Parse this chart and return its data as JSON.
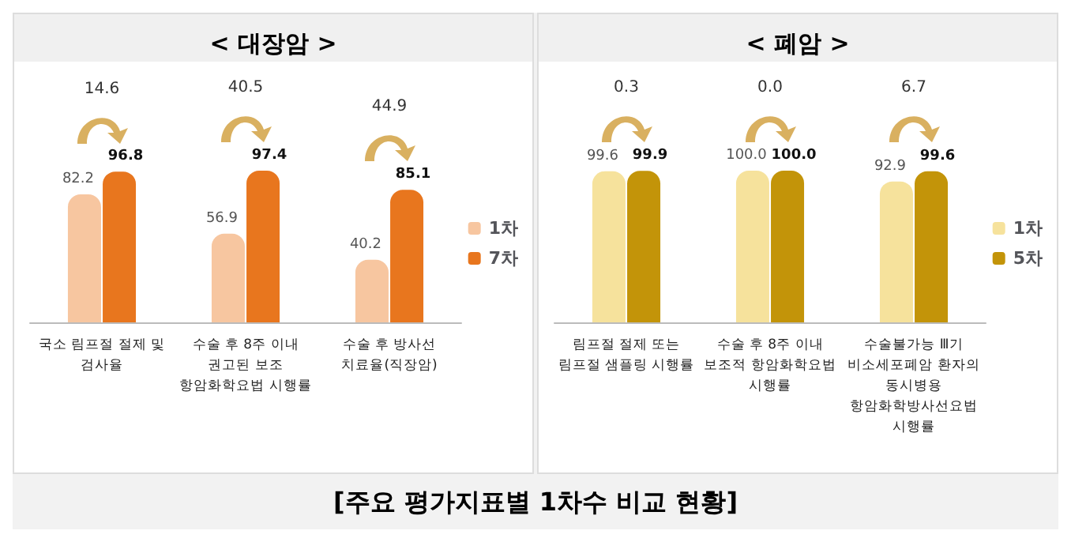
{
  "chart_data": [
    {
      "type": "bar",
      "title": "< 대장암 >",
      "categories": [
        "국소 림프절 절제 및\n검사율",
        "수술 후 8주 이내\n권고된 보조\n항암화학요법 시행률",
        "수술 후 방사선\n치료율(직장암)"
      ],
      "series": [
        {
          "name": "1차",
          "color": "#f7c6a0",
          "values": [
            82.2,
            56.9,
            40.2
          ],
          "value_labels": [
            "82.2",
            "56.9",
            "40.2"
          ]
        },
        {
          "name": "7차",
          "color": "#e8761e",
          "values": [
            96.8,
            97.4,
            85.1
          ],
          "value_labels": [
            "96.8",
            "97.4",
            "85.1"
          ]
        }
      ],
      "legend": "right",
      "grid": false,
      "annotations": [
        "14.6",
        "40.5",
        "44.9",
        "[주요 평가지표별 1차수 비교 현황]"
      ]
    },
    {
      "type": "bar",
      "title": "< 폐암 >",
      "categories": [
        "림프절 절제 또는\n림프절 샘플링 시행률",
        "수술 후 8주 이내\n보조적 항암화학요법\n시행률",
        "수술불가능 Ⅲ기\n비소세포폐암 환자의\n동시병용\n항암화학방사선요법\n시행률"
      ],
      "series": [
        {
          "name": "1차",
          "color": "#f6e29c",
          "values": [
            99.6,
            100.0,
            92.9
          ],
          "value_labels": [
            "99.6",
            "100.0",
            "92.9"
          ]
        },
        {
          "name": "5차",
          "color": "#c39409",
          "values": [
            99.9,
            100.0,
            99.6
          ],
          "value_labels": [
            "99.9",
            "100.0",
            "99.6"
          ]
        }
      ],
      "legend": "right",
      "grid": false,
      "annotations": [
        "0.3",
        "0.0",
        "6.7"
      ]
    }
  ]
}
